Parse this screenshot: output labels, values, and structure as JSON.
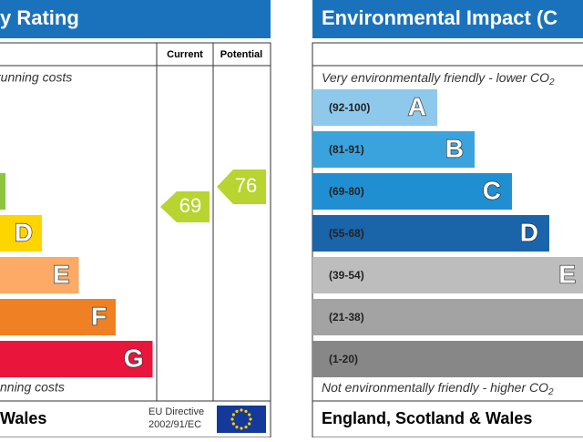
{
  "left_panel": {
    "title": "y Rating",
    "header": [
      "Current",
      "Potential"
    ],
    "top_note": "running costs",
    "bands": [
      "D",
      "E",
      "F",
      "G"
    ],
    "bottom_note": "nning costs",
    "current": 69,
    "potential": 76,
    "footer": {
      "region": "Wales",
      "directive": [
        "EU Directive",
        "2002/91/EC"
      ]
    }
  },
  "right_panel": {
    "title": "Environmental Impact (C",
    "top_note": {
      "text": "Very environmentally friendly - lower CO",
      "sub": "2"
    },
    "bands": [
      {
        "range": "(92-100)",
        "letter": "A"
      },
      {
        "range": "(81-91)",
        "letter": "B"
      },
      {
        "range": "(69-80)",
        "letter": "C"
      },
      {
        "range": "(55-68)",
        "letter": "D"
      },
      {
        "range": "(39-54)",
        "letter": "E"
      },
      {
        "range": "(21-38)"
      },
      {
        "range": "(1-20)"
      }
    ],
    "bottom_note": {
      "text": "Not environmentally friendly - higher CO",
      "sub": "2"
    },
    "footer": "England, Scotland & Wales"
  }
}
